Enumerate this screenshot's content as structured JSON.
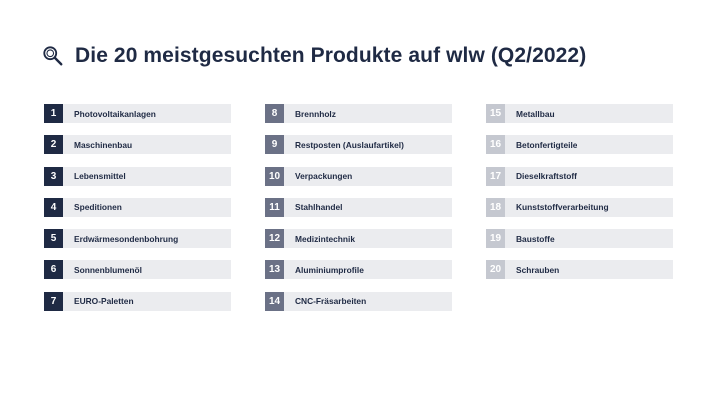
{
  "page": {
    "title": "Die 20 meistgesuchten Produkte auf wlw (Q2/2022)",
    "icon": "search-icon"
  },
  "colors": {
    "title": "#1f2a44",
    "item_bg": "#ebecef",
    "rank_column_1": "#1f2a44",
    "rank_column_2": "#6b7186",
    "rank_column_3": "#c5c8d0"
  },
  "columns": [
    {
      "items": [
        {
          "rank": "1",
          "label": "Photovoltaikanlagen"
        },
        {
          "rank": "2",
          "label": "Maschinenbau"
        },
        {
          "rank": "3",
          "label": "Lebensmittel"
        },
        {
          "rank": "4",
          "label": "Speditionen"
        },
        {
          "rank": "5",
          "label": "Erdwärmesondenbohrung"
        },
        {
          "rank": "6",
          "label": "Sonnenblumenöl"
        },
        {
          "rank": "7",
          "label": "EURO-Paletten"
        }
      ]
    },
    {
      "items": [
        {
          "rank": "8",
          "label": "Brennholz"
        },
        {
          "rank": "9",
          "label": "Restposten (Auslaufartikel)"
        },
        {
          "rank": "10",
          "label": "Verpackungen"
        },
        {
          "rank": "11",
          "label": "Stahlhandel"
        },
        {
          "rank": "12",
          "label": "Medizintechnik"
        },
        {
          "rank": "13",
          "label": "Aluminiumprofile"
        },
        {
          "rank": "14",
          "label": "CNC-Fräsarbeiten"
        }
      ]
    },
    {
      "items": [
        {
          "rank": "15",
          "label": "Metallbau"
        },
        {
          "rank": "16",
          "label": "Betonfertigteile"
        },
        {
          "rank": "17",
          "label": "Dieselkraftstoff"
        },
        {
          "rank": "18",
          "label": "Kunststoffverarbeitung"
        },
        {
          "rank": "19",
          "label": "Baustoffe"
        },
        {
          "rank": "20",
          "label": "Schrauben"
        }
      ]
    }
  ]
}
